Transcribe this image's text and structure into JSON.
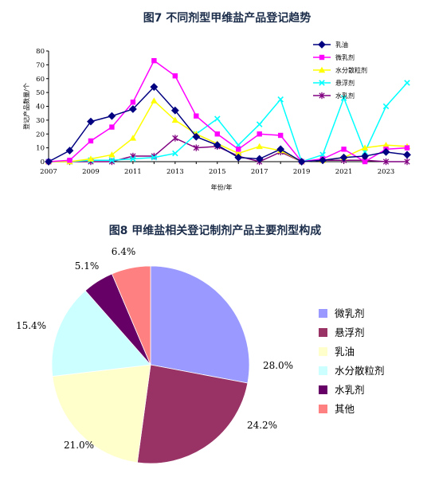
{
  "chart_data": [
    {
      "type": "line",
      "title": "图7 不同剂型甲维盐产品登记趋势",
      "xlabel": "年份/年",
      "ylabel": "登记产品数量/个",
      "x": [
        2007,
        2008,
        2009,
        2010,
        2011,
        2012,
        2013,
        2014,
        2015,
        2016,
        2017,
        2018,
        2019,
        2020,
        2021,
        2022,
        2023,
        2024
      ],
      "xticks": [
        "2007",
        "2009",
        "2011",
        "2013",
        "2015",
        "2017",
        "2019",
        "2021",
        "2023"
      ],
      "ylim": [
        0,
        80
      ],
      "yticks": [
        "0",
        "10",
        "20",
        "30",
        "40",
        "50",
        "60",
        "70",
        "80"
      ],
      "legend_position": "top-right",
      "series": [
        {
          "name": "乳油",
          "color": "#000080",
          "marker": "diamond",
          "values": [
            0,
            8,
            29,
            33,
            38,
            54,
            37,
            18,
            12,
            3,
            2,
            9,
            0,
            1,
            3,
            4,
            7,
            5
          ]
        },
        {
          "name": "微乳剂",
          "color": "#ff00ff",
          "marker": "square",
          "values": [
            0,
            1,
            15,
            25,
            43,
            73,
            62,
            33,
            20,
            9,
            20,
            19,
            0,
            2,
            9,
            0,
            9,
            10
          ]
        },
        {
          "name": "水分散粒剂",
          "color": "#ffff00",
          "marker": "triangle",
          "values": [
            0,
            0,
            2,
            5,
            17,
            44,
            30,
            20,
            13,
            6,
            11,
            8,
            0,
            1,
            3,
            10,
            12,
            11
          ]
        },
        {
          "name": "悬浮剂",
          "color": "#00ffff",
          "marker": "x",
          "values": [
            0,
            0,
            1,
            1,
            2,
            3,
            6,
            20,
            31,
            12,
            27,
            45,
            0,
            5,
            46,
            7,
            40,
            57
          ]
        },
        {
          "name": "水乳剂",
          "color": "#800080",
          "marker": "star",
          "values": [
            0,
            0,
            0,
            0,
            4,
            4,
            17,
            10,
            11,
            4,
            0,
            7,
            0,
            1,
            1,
            1,
            0,
            0
          ]
        }
      ]
    },
    {
      "type": "pie",
      "title": "图8 甲维盐相关登记制剂产品主要剂型构成",
      "legend_position": "right",
      "slices": [
        {
          "label": "微乳剂",
          "value": 28.0,
          "text": "28.0%",
          "color": "#9999ff"
        },
        {
          "label": "悬浮剂",
          "value": 24.2,
          "text": "24.2%",
          "color": "#993366"
        },
        {
          "label": "乳油",
          "value": 21.0,
          "text": "21.0%",
          "color": "#ffffcc"
        },
        {
          "label": "水分散粒剂",
          "value": 15.4,
          "text": "15.4%",
          "color": "#ccffff"
        },
        {
          "label": "水乳剂",
          "value": 5.1,
          "text": "5.1%",
          "color": "#660066"
        },
        {
          "label": "其他",
          "value": 6.4,
          "text": "6.4%",
          "color": "#ff8080"
        }
      ]
    }
  ]
}
